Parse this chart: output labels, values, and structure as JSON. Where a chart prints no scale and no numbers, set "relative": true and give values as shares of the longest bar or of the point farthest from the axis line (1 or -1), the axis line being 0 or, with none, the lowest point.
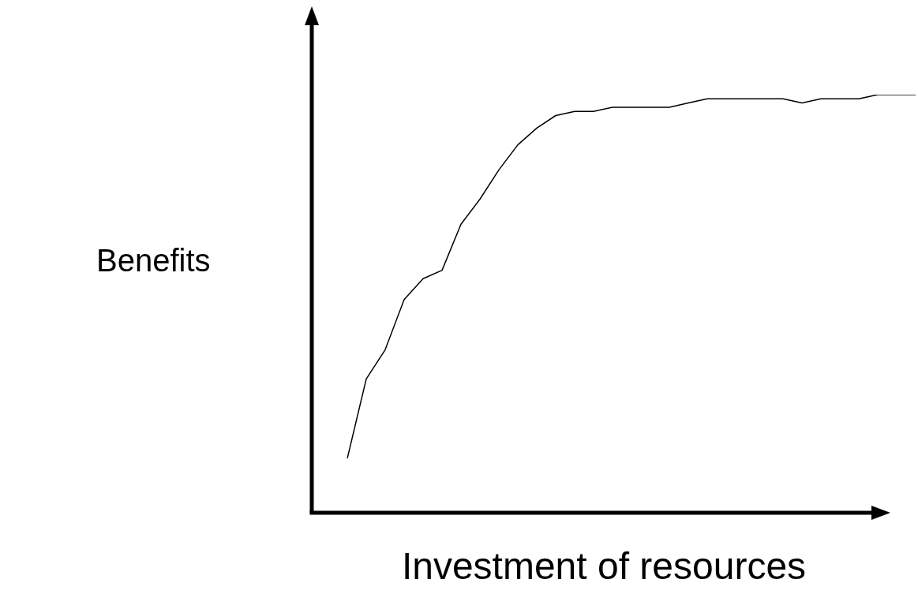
{
  "chart_data": {
    "type": "line",
    "relative": true,
    "xlabel": "Investment of resources",
    "ylabel": "Benefits",
    "categories": [
      null,
      null,
      null,
      null,
      null,
      null,
      null,
      null,
      null,
      null,
      null,
      null,
      null,
      null,
      null,
      null,
      null,
      null,
      null,
      null,
      null,
      null,
      null,
      null,
      null,
      null,
      null,
      null,
      null,
      null,
      null
    ],
    "series": [
      {
        "color": "#000000",
        "values": [
          0.13,
          0.32,
          0.39,
          0.51,
          0.56,
          0.58,
          0.69,
          0.75,
          0.82,
          0.88,
          0.92,
          0.95,
          0.96,
          0.96,
          0.97,
          0.97,
          0.97,
          0.97,
          0.98,
          0.99,
          0.99,
          0.99,
          0.99,
          0.99,
          0.98,
          0.99,
          0.99,
          0.99,
          1.0,
          1.0,
          1.0
        ]
      }
    ],
    "grid": false,
    "legend": false,
    "marker": "none",
    "line_style": "solid"
  }
}
